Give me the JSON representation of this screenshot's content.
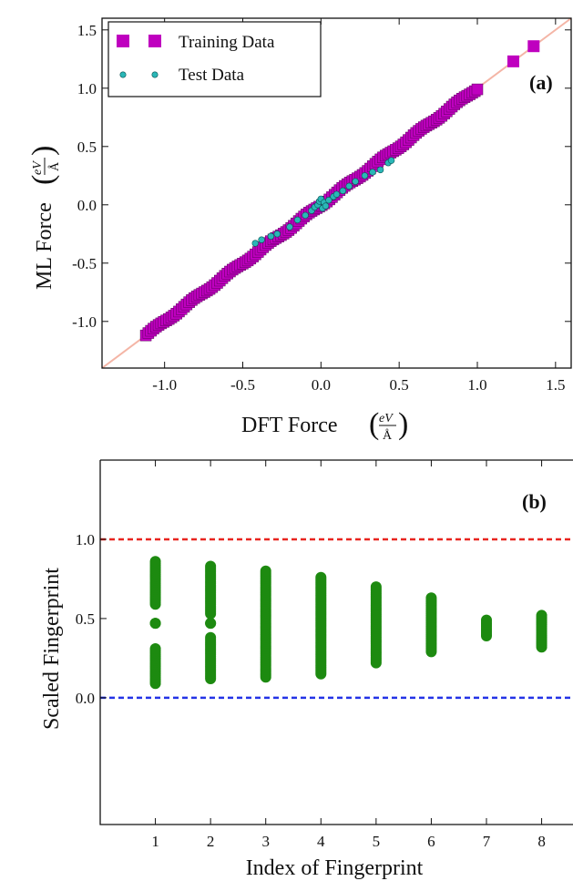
{
  "chart_data": [
    {
      "type": "scatter",
      "panel_label": "(a)",
      "xlabel": "DFT Force",
      "ylabel": "ML Force",
      "unit": {
        "numerator": "eV",
        "denominator": "Å"
      },
      "xlim": [
        -1.4,
        1.6
      ],
      "ylim": [
        -1.4,
        1.6
      ],
      "xticks": [
        "-1.0",
        "-0.5",
        "0.0",
        "0.5",
        "1.0",
        "1.5"
      ],
      "yticks": [
        "-1.0",
        "-0.5",
        "0.0",
        "0.5",
        "1.0",
        "1.5"
      ],
      "xtick_values": [
        -1.0,
        -0.5,
        0.0,
        0.5,
        1.0,
        1.5
      ],
      "ytick_values": [
        -1.0,
        -0.5,
        0.0,
        0.5,
        1.0,
        1.5
      ],
      "legend_placement": "top-left",
      "grid": false,
      "reference_line": {
        "slope": 1,
        "intercept": 0,
        "color": "#f4b5a6"
      },
      "series": [
        {
          "name": "Training Data",
          "marker": "square",
          "color": "#bf00bf",
          "range": [
            -1.12,
            1.0
          ],
          "outliers": [
            [
              1.23,
              1.23
            ],
            [
              1.36,
              1.36
            ]
          ]
        },
        {
          "name": "Test Data",
          "marker": "circle",
          "color": "#2ab7b7",
          "points": [
            [
              -0.42,
              -0.33
            ],
            [
              -0.38,
              -0.3
            ],
            [
              -0.32,
              -0.27
            ],
            [
              -0.28,
              -0.25
            ],
            [
              -0.2,
              -0.19
            ],
            [
              -0.15,
              -0.13
            ],
            [
              -0.1,
              -0.09
            ],
            [
              -0.06,
              -0.05
            ],
            [
              -0.04,
              -0.02
            ],
            [
              -0.02,
              0.0
            ],
            [
              -0.01,
              0.03
            ],
            [
              0.0,
              0.05
            ],
            [
              0.01,
              -0.03
            ],
            [
              0.02,
              0.02
            ],
            [
              0.03,
              -0.01
            ],
            [
              0.05,
              0.04
            ],
            [
              0.08,
              0.07
            ],
            [
              0.1,
              0.09
            ],
            [
              0.14,
              0.12
            ],
            [
              0.18,
              0.16
            ],
            [
              0.22,
              0.2
            ],
            [
              0.28,
              0.25
            ],
            [
              0.33,
              0.28
            ],
            [
              0.38,
              0.3
            ],
            [
              0.43,
              0.36
            ],
            [
              0.45,
              0.38
            ]
          ]
        }
      ]
    },
    {
      "type": "scatter",
      "panel_label": "(b)",
      "xlabel": "Index of Fingerprint",
      "ylabel": "Scaled Fingerprint",
      "xlim": [
        0,
        8.75
      ],
      "ylim": [
        -0.8,
        1.5
      ],
      "xticks": [
        "1",
        "2",
        "3",
        "4",
        "5",
        "6",
        "7",
        "8"
      ],
      "xtick_values": [
        1,
        2,
        3,
        4,
        5,
        6,
        7,
        8
      ],
      "yticks": [
        "0.0",
        "0.5",
        "1.0"
      ],
      "ytick_values": [
        0.0,
        0.5,
        1.0
      ],
      "grid": false,
      "reference_lines": [
        {
          "y": 1.0,
          "style": "dashed",
          "color": "#e8251f"
        },
        {
          "y": 0.0,
          "style": "dashed",
          "color": "#2433e6"
        }
      ],
      "series": [
        {
          "marker": "circle",
          "color": "#1d8a10",
          "columns": [
            {
              "x": 1,
              "segments": [
                [
                  0.59,
                  0.86
                ],
                [
                  0.47,
                  0.47
                ],
                [
                  0.09,
                  0.31
                ]
              ]
            },
            {
              "x": 2,
              "segments": [
                [
                  0.53,
                  0.83
                ],
                [
                  0.47,
                  0.47
                ],
                [
                  0.12,
                  0.38
                ]
              ]
            },
            {
              "x": 3,
              "segments": [
                [
                  0.13,
                  0.8
                ]
              ]
            },
            {
              "x": 4,
              "segments": [
                [
                  0.15,
                  0.76
                ]
              ]
            },
            {
              "x": 5,
              "segments": [
                [
                  0.22,
                  0.7
                ]
              ]
            },
            {
              "x": 6,
              "segments": [
                [
                  0.29,
                  0.63
                ]
              ]
            },
            {
              "x": 7,
              "segments": [
                [
                  0.39,
                  0.49
                ]
              ]
            },
            {
              "x": 8,
              "segments": [
                [
                  0.32,
                  0.52
                ]
              ]
            }
          ]
        }
      ]
    }
  ]
}
